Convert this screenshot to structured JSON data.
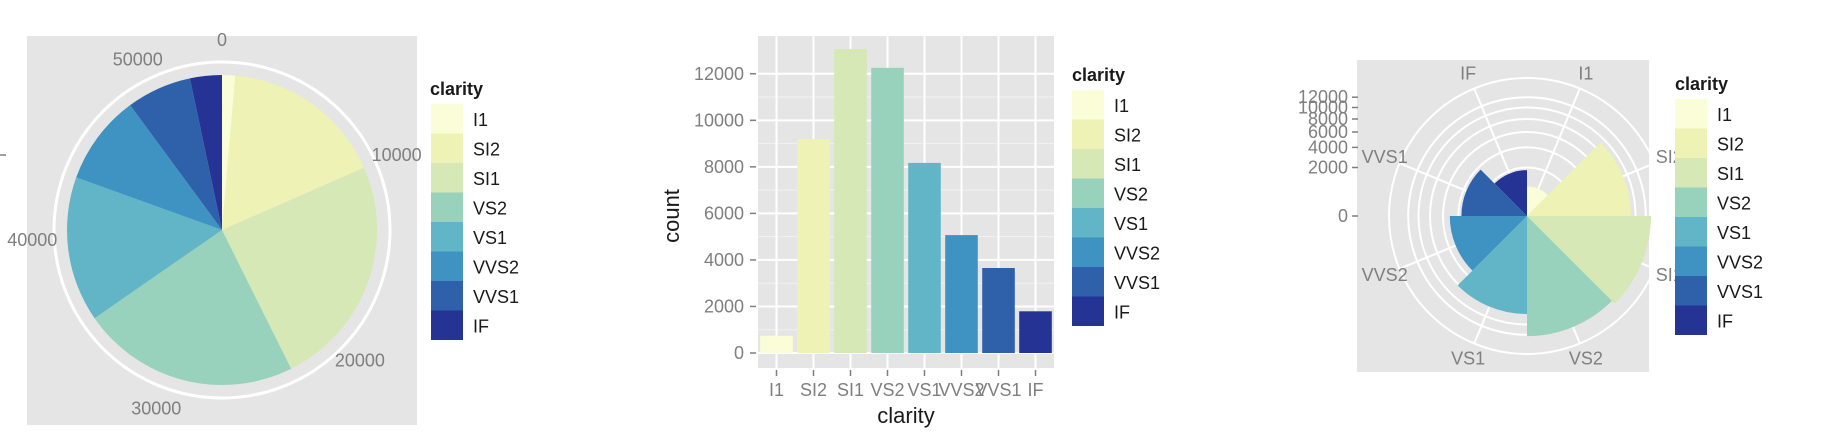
{
  "colors": [
    "#fbfcd8",
    "#eef2b4",
    "#d5e8b5",
    "#98d2bc",
    "#62b5c6",
    "#3e93c3",
    "#2f61ab",
    "#253494"
  ],
  "chart_data": [
    {
      "type": "pie",
      "panel": "left",
      "legend_title": "clarity",
      "categories": [
        "I1",
        "SI2",
        "SI1",
        "VS2",
        "VS1",
        "VVS2",
        "VVS1",
        "IF"
      ],
      "values": [
        741,
        9194,
        13065,
        12258,
        8171,
        5066,
        3655,
        1790
      ],
      "radial_ticks": [
        "0",
        "10000",
        "20000",
        "30000",
        "40000",
        "50000"
      ],
      "legend_position": "right"
    },
    {
      "type": "bar",
      "panel": "middle",
      "legend_title": "clarity",
      "categories": [
        "I1",
        "SI2",
        "SI1",
        "VS2",
        "VS1",
        "VVS2",
        "VVS1",
        "IF"
      ],
      "values": [
        741,
        9194,
        13065,
        12258,
        8171,
        5066,
        3655,
        1790
      ],
      "xlabel": "clarity",
      "ylabel": "count",
      "ylim": [
        0,
        13500
      ],
      "yticks": [
        0,
        2000,
        4000,
        6000,
        8000,
        10000,
        12000
      ],
      "ytick_labels": [
        "0",
        "2000",
        "4000",
        "6000",
        "8000",
        "10000",
        "12000"
      ],
      "grid": true,
      "legend_position": "right"
    },
    {
      "type": "bar",
      "coord": "polar",
      "panel": "right",
      "legend_title": "clarity",
      "categories": [
        "I1",
        "SI2",
        "SI1",
        "VS2",
        "VS1",
        "VVS2",
        "VVS1",
        "IF"
      ],
      "values": [
        741,
        9194,
        13065,
        12258,
        8171,
        5066,
        3655,
        1790
      ],
      "radial_ticks": [
        0,
        2000,
        4000,
        6000,
        8000,
        10000,
        12000
      ],
      "radial_tick_labels": [
        "0",
        "2000",
        "4000",
        "6000",
        "8000",
        "10000",
        "12000"
      ],
      "grid": true,
      "legend_position": "right"
    }
  ]
}
